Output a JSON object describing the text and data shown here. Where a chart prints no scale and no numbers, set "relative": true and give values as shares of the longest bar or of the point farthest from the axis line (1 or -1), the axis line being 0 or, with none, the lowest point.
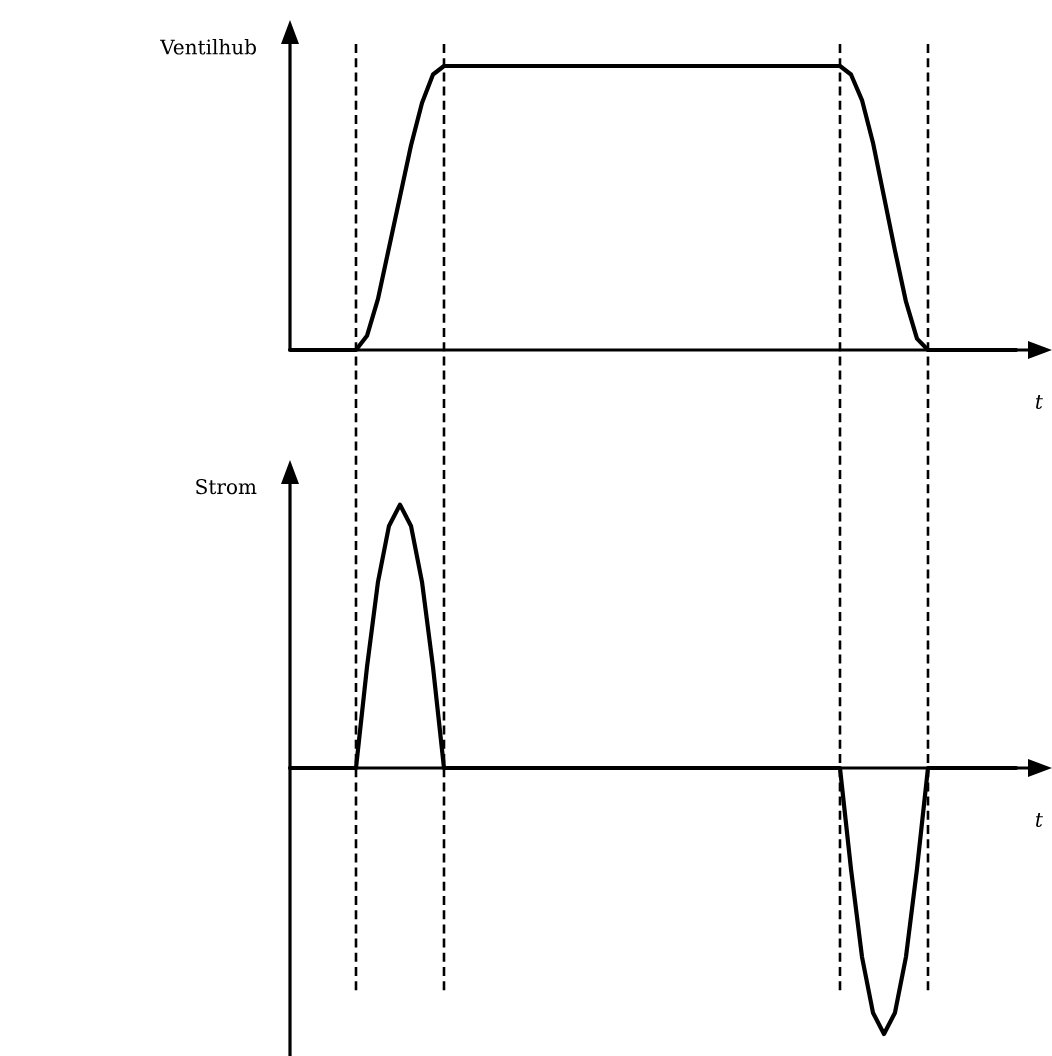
{
  "chart_data": [
    {
      "type": "line",
      "ylabel": "Ventilhub",
      "xlabel": "t",
      "relative": true,
      "grid": "x",
      "categories": [
        null,
        null,
        null,
        null,
        null,
        null,
        null,
        null,
        null,
        null,
        null,
        null,
        null,
        null,
        null,
        null,
        null,
        null,
        null,
        null,
        null,
        null,
        null,
        null,
        null,
        null,
        null,
        null,
        null,
        null,
        null,
        null,
        null,
        null,
        null,
        null,
        null,
        null,
        null,
        null,
        null,
        null,
        null,
        null,
        null,
        null,
        null,
        null,
        null,
        null,
        null,
        null,
        null,
        null,
        null,
        null,
        null,
        null,
        null,
        null,
        null,
        null,
        null,
        null,
        null,
        null,
        null
      ],
      "series": [
        {
          "color": "#000000",
          "values": [
            0,
            0,
            0,
            0,
            0,
            0,
            0,
            0.05,
            0.18,
            0.36,
            0.54,
            0.72,
            0.87,
            0.97,
            1,
            1,
            1,
            1,
            1,
            1,
            1,
            1,
            1,
            1,
            1,
            1,
            1,
            1,
            1,
            1,
            1,
            1,
            1,
            1,
            1,
            1,
            1,
            1,
            1,
            1,
            1,
            1,
            1,
            1,
            1,
            1,
            1,
            1,
            1,
            1,
            1,
            0.97,
            0.88,
            0.73,
            0.54,
            0.35,
            0.17,
            0.04,
            0,
            0,
            0,
            0,
            0,
            0,
            0,
            0,
            0
          ]
        }
      ]
    },
    {
      "type": "line",
      "ylabel": "Strom",
      "xlabel": "t",
      "relative": true,
      "grid": "x",
      "categories": [
        null,
        null,
        null,
        null,
        null,
        null,
        null,
        null,
        null,
        null,
        null,
        null,
        null,
        null,
        null,
        null,
        null,
        null,
        null,
        null,
        null,
        null,
        null,
        null,
        null,
        null,
        null,
        null,
        null,
        null,
        null,
        null,
        null,
        null,
        null,
        null,
        null,
        null,
        null,
        null,
        null,
        null,
        null,
        null,
        null,
        null,
        null,
        null,
        null,
        null,
        null,
        null,
        null,
        null,
        null,
        null,
        null,
        null,
        null,
        null,
        null,
        null,
        null,
        null,
        null,
        null,
        null
      ],
      "series": [
        {
          "color": "#000000",
          "values": [
            0,
            0,
            0,
            0,
            0,
            0,
            0,
            0.38,
            0.7,
            0.91,
            0.99,
            0.91,
            0.7,
            0.38,
            0,
            0,
            0,
            0,
            0,
            0,
            0,
            0,
            0,
            0,
            0,
            0,
            0,
            0,
            0,
            0,
            0,
            0,
            0,
            0,
            0,
            0,
            0,
            0,
            0,
            0,
            0,
            0,
            0,
            0,
            0,
            0,
            0,
            0,
            0,
            0,
            0,
            -0.38,
            -0.71,
            -0.92,
            -1,
            -0.92,
            -0.71,
            -0.38,
            0,
            0,
            0,
            0,
            0,
            0,
            0,
            0,
            0
          ]
        }
      ]
    }
  ]
}
